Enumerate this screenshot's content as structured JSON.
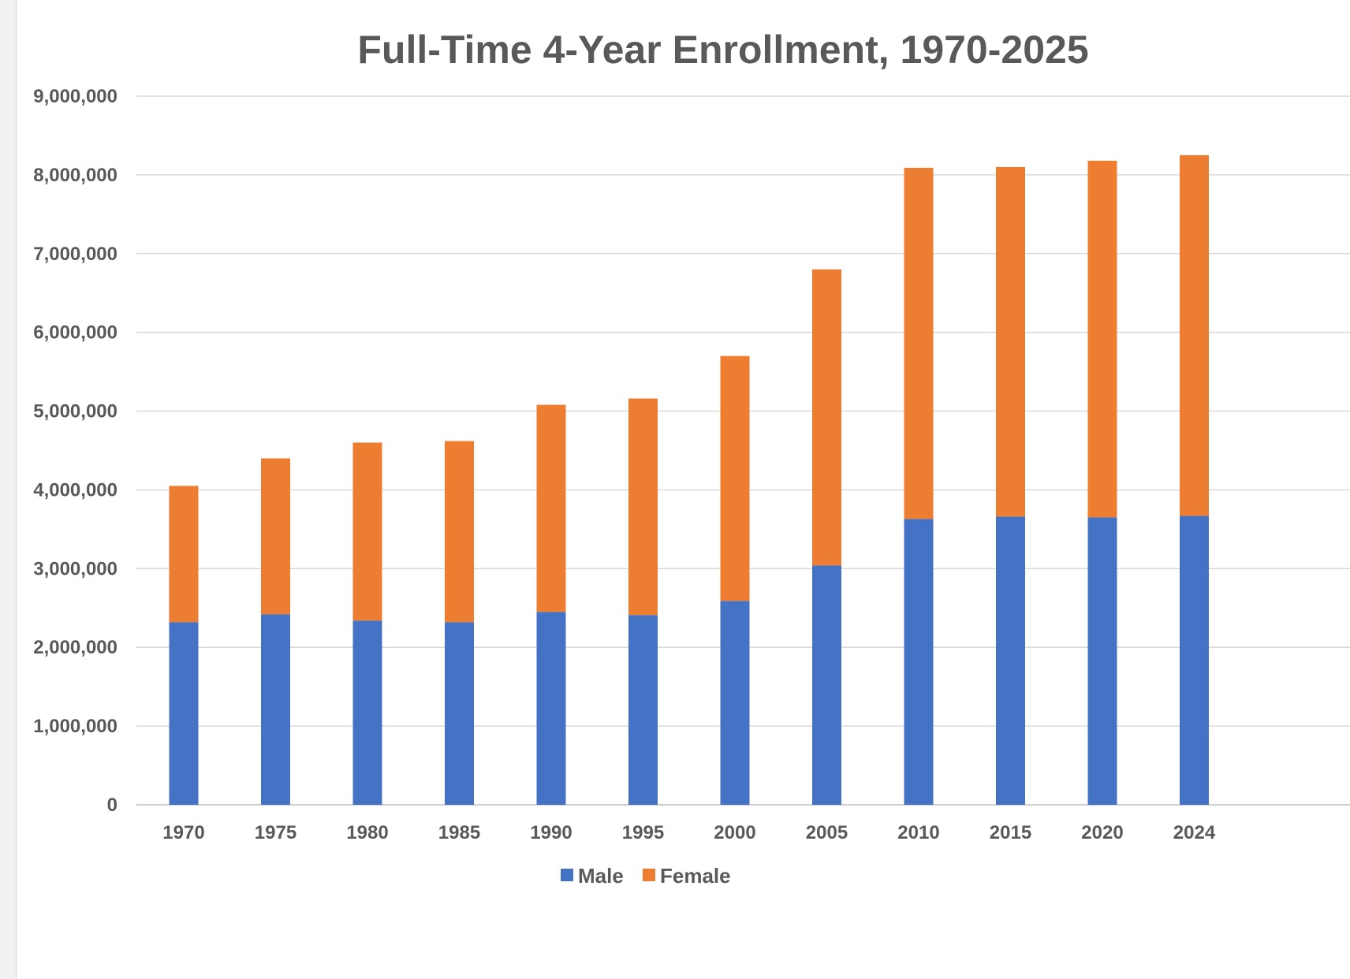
{
  "chart_data": {
    "type": "bar",
    "stacked": true,
    "title": "Full-Time 4-Year Enrollment, 1970-2025",
    "xlabel": "",
    "ylabel": "",
    "categories": [
      "1970",
      "1975",
      "1980",
      "1985",
      "1990",
      "1995",
      "2000",
      "2005",
      "2010",
      "2015",
      "2020",
      "2024"
    ],
    "series": [
      {
        "name": "Male",
        "color": "#4472C4",
        "values": [
          2320000,
          2420000,
          2340000,
          2320000,
          2450000,
          2410000,
          2590000,
          3040000,
          3630000,
          3660000,
          3650000,
          3670000
        ]
      },
      {
        "name": "Female",
        "color": "#ED7D31",
        "values": [
          1730000,
          1980000,
          2260000,
          2300000,
          2630000,
          2750000,
          3110000,
          3760000,
          4460000,
          4440000,
          4530000,
          4580000
        ]
      }
    ],
    "ylim": [
      0,
      9000000
    ],
    "yticks": [
      0,
      1000000,
      2000000,
      3000000,
      4000000,
      5000000,
      6000000,
      7000000,
      8000000,
      9000000
    ],
    "ytick_labels": [
      "0",
      "1,000,000",
      "2,000,000",
      "3,000,000",
      "4,000,000",
      "5,000,000",
      "6,000,000",
      "7,000,000",
      "8,000,000",
      "9,000,000"
    ],
    "grid": true,
    "legend_position": "bottom",
    "colors": {
      "gridline": "#d9d9d9",
      "axis": "#bfbfbf",
      "text": "#595959"
    }
  }
}
